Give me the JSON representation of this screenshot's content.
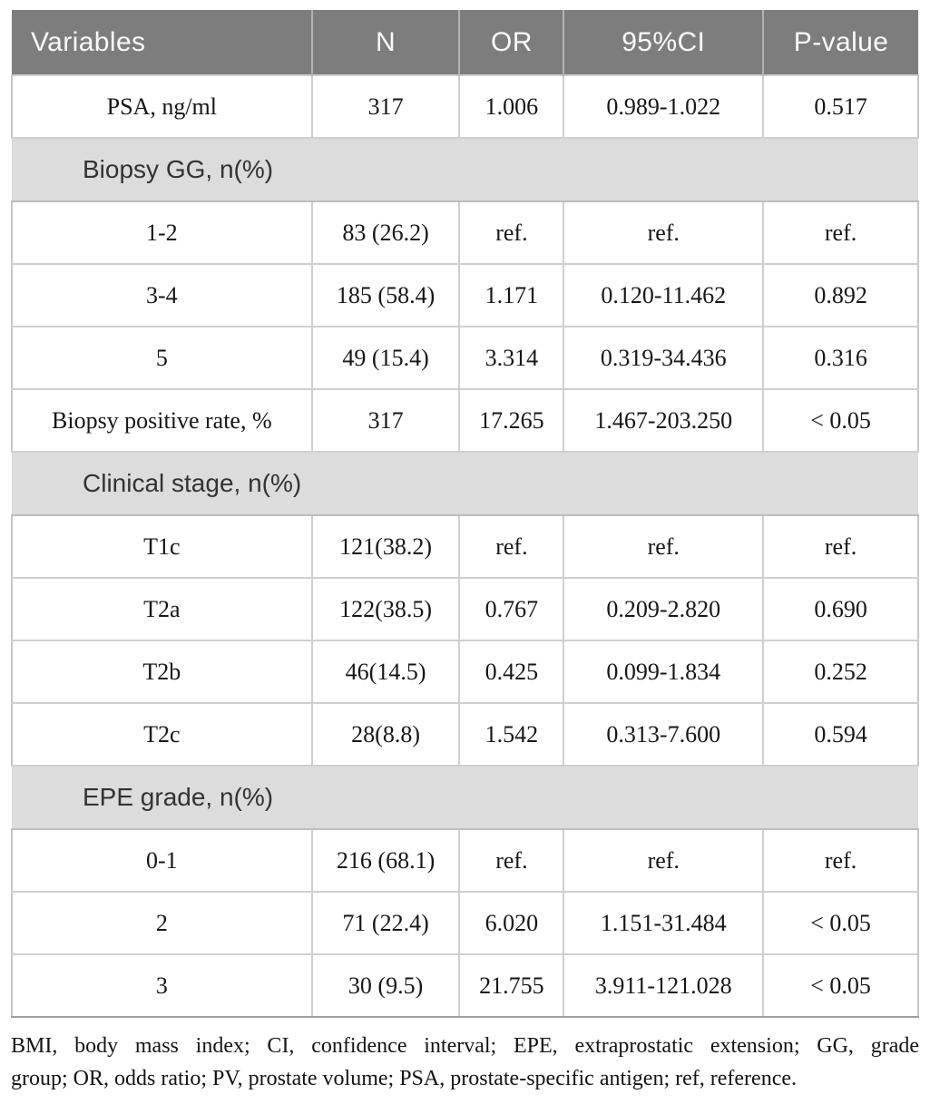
{
  "table": {
    "columns": [
      "Variables",
      "N",
      "OR",
      "95%CI",
      "P-value"
    ],
    "rows": [
      {
        "type": "data",
        "cells": [
          "PSA, ng/ml",
          "317",
          "1.006",
          "0.989-1.022",
          "0.517"
        ]
      },
      {
        "type": "section",
        "label": "Biopsy GG, n(%)"
      },
      {
        "type": "data",
        "cells": [
          "1-2",
          "83 (26.2)",
          "ref.",
          "ref.",
          "ref."
        ]
      },
      {
        "type": "data",
        "cells": [
          "3-4",
          "185 (58.4)",
          "1.171",
          "0.120-11.462",
          "0.892"
        ]
      },
      {
        "type": "data",
        "cells": [
          "5",
          "49 (15.4)",
          "3.314",
          "0.319-34.436",
          "0.316"
        ]
      },
      {
        "type": "data",
        "cells": [
          "Biopsy positive rate, %",
          "317",
          "17.265",
          "1.467-203.250",
          "< 0.05"
        ]
      },
      {
        "type": "section",
        "label": "Clinical stage, n(%)"
      },
      {
        "type": "data",
        "cells": [
          "T1c",
          "121(38.2)",
          "ref.",
          "ref.",
          "ref."
        ]
      },
      {
        "type": "data",
        "cells": [
          "T2a",
          "122(38.5)",
          "0.767",
          "0.209-2.820",
          "0.690"
        ]
      },
      {
        "type": "data",
        "cells": [
          "T2b",
          "46(14.5)",
          "0.425",
          "0.099-1.834",
          "0.252"
        ]
      },
      {
        "type": "data",
        "cells": [
          "T2c",
          "28(8.8)",
          "1.542",
          "0.313-7.600",
          "0.594"
        ]
      },
      {
        "type": "section",
        "label": "EPE grade, n(%)"
      },
      {
        "type": "data",
        "cells": [
          "0-1",
          "216 (68.1)",
          "ref.",
          "ref.",
          "ref."
        ]
      },
      {
        "type": "data",
        "cells": [
          "2",
          "71 (22.4)",
          "6.020",
          "1.151-31.484",
          "< 0.05"
        ]
      },
      {
        "type": "data",
        "cells": [
          "3",
          "30 (9.5)",
          "21.755",
          "3.911-121.028",
          "< 0.05"
        ]
      }
    ],
    "footnote_lines": [
      "BMI, body mass index; CI, confidence interval; EPE, extraprostatic extension; GG, grade",
      "group; OR, odds ratio; PV, prostate volume; PSA, prostate-specific antigen; ref, reference."
    ]
  },
  "colors": {
    "header_bg": "#7d7d7d",
    "header_text": "#fafafa",
    "section_bg": "#dcdcdc",
    "section_text": "#333333",
    "body_text": "#161616",
    "border_inner": "#cfcfcf",
    "border_bottom_outer": "#9e9e9e"
  }
}
